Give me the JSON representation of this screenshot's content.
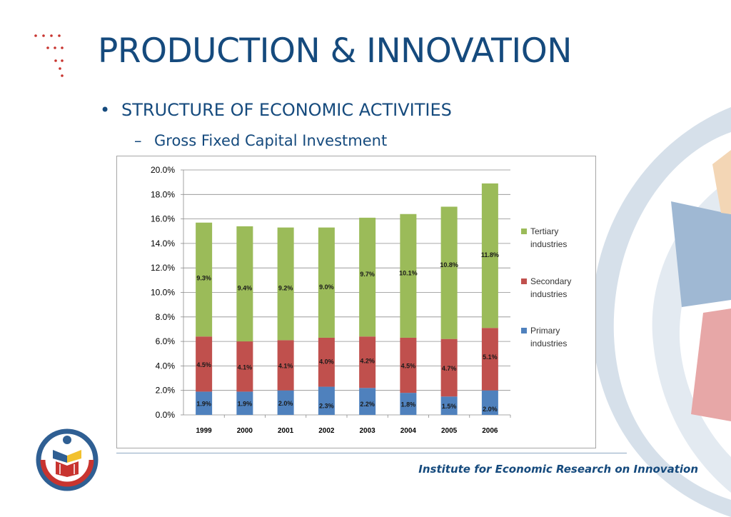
{
  "page": {
    "title": "PRODUCTION & INNOVATION",
    "bullet": "STRUCTURE OF ECONOMIC ACTIVITIES",
    "sub_bullet": "Gross Fixed Capital Investment",
    "footer": "Institute for Economic Research on Innovation"
  },
  "colors": {
    "title": "#154a7d",
    "primary": "#4f81bd",
    "secondary": "#c0504d",
    "tertiary": "#9bbb59"
  },
  "chart_data": {
    "type": "bar",
    "stacked": true,
    "title": "",
    "xlabel": "",
    "ylabel": "",
    "categories": [
      "1999",
      "2000",
      "2001",
      "2002",
      "2003",
      "2004",
      "2005",
      "2006"
    ],
    "ylim": [
      0,
      20
    ],
    "yticks": [
      "0.0%",
      "2.0%",
      "4.0%",
      "6.0%",
      "8.0%",
      "10.0%",
      "12.0%",
      "14.0%",
      "16.0%",
      "18.0%",
      "20.0%"
    ],
    "grid": true,
    "legend_position": "right",
    "series": [
      {
        "name": "Primary industries",
        "values": [
          1.9,
          1.9,
          2.0,
          2.3,
          2.2,
          1.8,
          1.5,
          2.0
        ],
        "labels": [
          "1.9%",
          "1.9%",
          "2.0%",
          "2.3%",
          "2.2%",
          "1.8%",
          "1.5%",
          "2.0%"
        ],
        "color": "#4f81bd"
      },
      {
        "name": "Secondary industries",
        "values": [
          4.5,
          4.1,
          4.1,
          4.0,
          4.2,
          4.5,
          4.7,
          5.1
        ],
        "labels": [
          "4.5%",
          "4.1%",
          "4.1%",
          "4.0%",
          "4.2%",
          "4.5%",
          "4.7%",
          "5.1%"
        ],
        "color": "#c0504d"
      },
      {
        "name": "Tertiary industries",
        "values": [
          9.3,
          9.4,
          9.2,
          9.0,
          9.7,
          10.1,
          10.8,
          11.8
        ],
        "labels": [
          "9.3%",
          "9.4%",
          "9.2%",
          "9.0%",
          "9.7%",
          "10.1%",
          "10.8%",
          "11.8%"
        ],
        "color": "#9bbb59"
      }
    ],
    "legend_order": [
      "Tertiary industries",
      "Secondary industries",
      "Primary industries"
    ]
  }
}
